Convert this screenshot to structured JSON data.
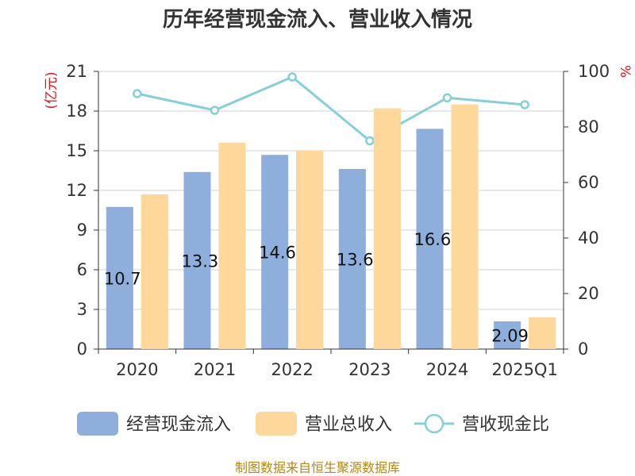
{
  "chart_data": {
    "type": "bar",
    "title": "历年经营现金流入、营业收入情况",
    "categories": [
      "2020",
      "2021",
      "2022",
      "2023",
      "2024",
      "2025Q1"
    ],
    "series": [
      {
        "name": "经营现金流入",
        "type": "bar",
        "axis": "left",
        "color": "#8eaedb",
        "values": [
          10.752,
          13.391,
          14.685,
          13.624,
          16.655,
          2.094
        ],
        "labels": [
          "10.752",
          "13.391",
          "14.685",
          "13.624",
          "16.655",
          "2.094"
        ]
      },
      {
        "name": "营业总收入",
        "type": "bar",
        "axis": "left",
        "color": "#fdd89a",
        "values": [
          11.7,
          15.6,
          15.0,
          18.2,
          18.5,
          2.4
        ]
      },
      {
        "name": "营收现金比",
        "type": "line",
        "axis": "right",
        "color": "#84d0d6",
        "values": [
          92,
          86,
          98,
          75,
          90.5,
          88
        ]
      }
    ],
    "left_axis": {
      "label": "(亿元)",
      "min": 0,
      "max": 21,
      "ticks": [
        "0",
        "3",
        "6",
        "9",
        "12",
        "15",
        "18",
        "21"
      ]
    },
    "right_axis": {
      "label": "%",
      "min": 0,
      "max": 100,
      "ticks": [
        "0",
        "20",
        "40",
        "60",
        "80",
        "100"
      ]
    },
    "grid": true,
    "legend_position": "bottom"
  },
  "footer": "制图数据来自恒生聚源数据库"
}
